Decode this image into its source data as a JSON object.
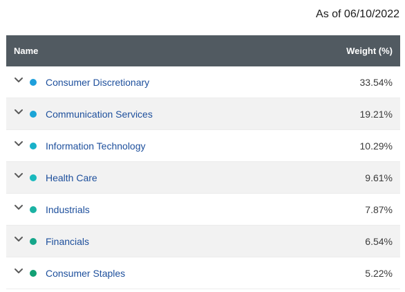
{
  "as_of": "As of 06/10/2022",
  "header": {
    "name": "Name",
    "weight": "Weight (%)"
  },
  "rows": [
    {
      "name": "Consumer Discretionary",
      "weight": "33.54%",
      "color": "#1e9fdc"
    },
    {
      "name": "Communication Services",
      "weight": "19.21%",
      "color": "#1aa4d6"
    },
    {
      "name": "Information Technology",
      "weight": "10.29%",
      "color": "#18b1c9"
    },
    {
      "name": "Health Care",
      "weight": "9.61%",
      "color": "#1ab9bd"
    },
    {
      "name": "Industrials",
      "weight": "7.87%",
      "color": "#1bb2a3"
    },
    {
      "name": "Financials",
      "weight": "6.54%",
      "color": "#15a68a"
    },
    {
      "name": "Consumer Staples",
      "weight": "5.22%",
      "color": "#12a074"
    }
  ],
  "icons": {
    "row_toggle": "chevron-down-icon",
    "sector_marker": "color-dot-icon"
  }
}
